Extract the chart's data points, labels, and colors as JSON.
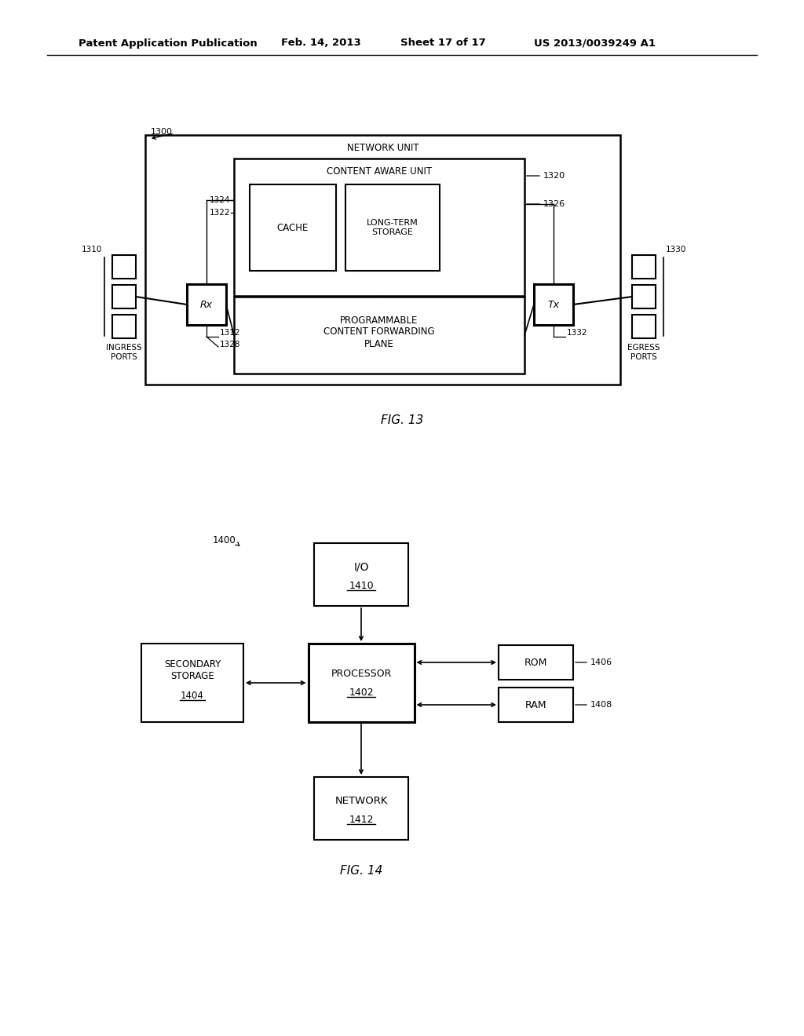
{
  "bg_color": "#ffffff",
  "header_text": "Patent Application Publication",
  "header_date": "Feb. 14, 2013",
  "header_sheet": "Sheet 17 of 17",
  "header_patent": "US 2013/0039249 A1",
  "fig13_label": "FIG. 13",
  "fig14_label": "FIG. 14",
  "fig13_ref": "1300",
  "fig13_network_unit_label": "NETWORK UNIT",
  "fig13_content_aware_label": "CONTENT AWARE UNIT",
  "fig13_content_aware_ref": "1320",
  "fig13_cache_label": "CACHE",
  "fig13_cache_ref": "1324",
  "fig13_cache_inner_ref": "1322",
  "fig13_longstorage_label": "LONG-TERM\nSTORAGE",
  "fig13_longstorage_ref": "1326",
  "fig13_pcfp_label": "PROGRAMMABLE\nCONTENT FORWARDING\nPLANE",
  "fig13_rx_label": "Rx",
  "fig13_rx_ref": "1312",
  "fig13_rx_ref2": "1328",
  "fig13_tx_label": "Tx",
  "fig13_tx_ref": "1332",
  "fig13_ingress_label": "INGRESS\nPORTS",
  "fig13_ingress_ref": "1310",
  "fig13_egress_label": "EGRESS\nPORTS",
  "fig13_egress_ref": "1330",
  "fig14_ref": "1400",
  "fig14_io_label": "I/O",
  "fig14_io_ref": "1410",
  "fig14_processor_label": "PROCESSOR",
  "fig14_processor_ref": "1402",
  "fig14_secondary_label": "SECONDARY\nSTORAGE",
  "fig14_secondary_ref": "1404",
  "fig14_rom_label": "ROM",
  "fig14_rom_ref": "1406",
  "fig14_ram_label": "RAM",
  "fig14_ram_ref": "1408",
  "fig14_network_label": "NETWORK",
  "fig14_network_ref": "1412"
}
